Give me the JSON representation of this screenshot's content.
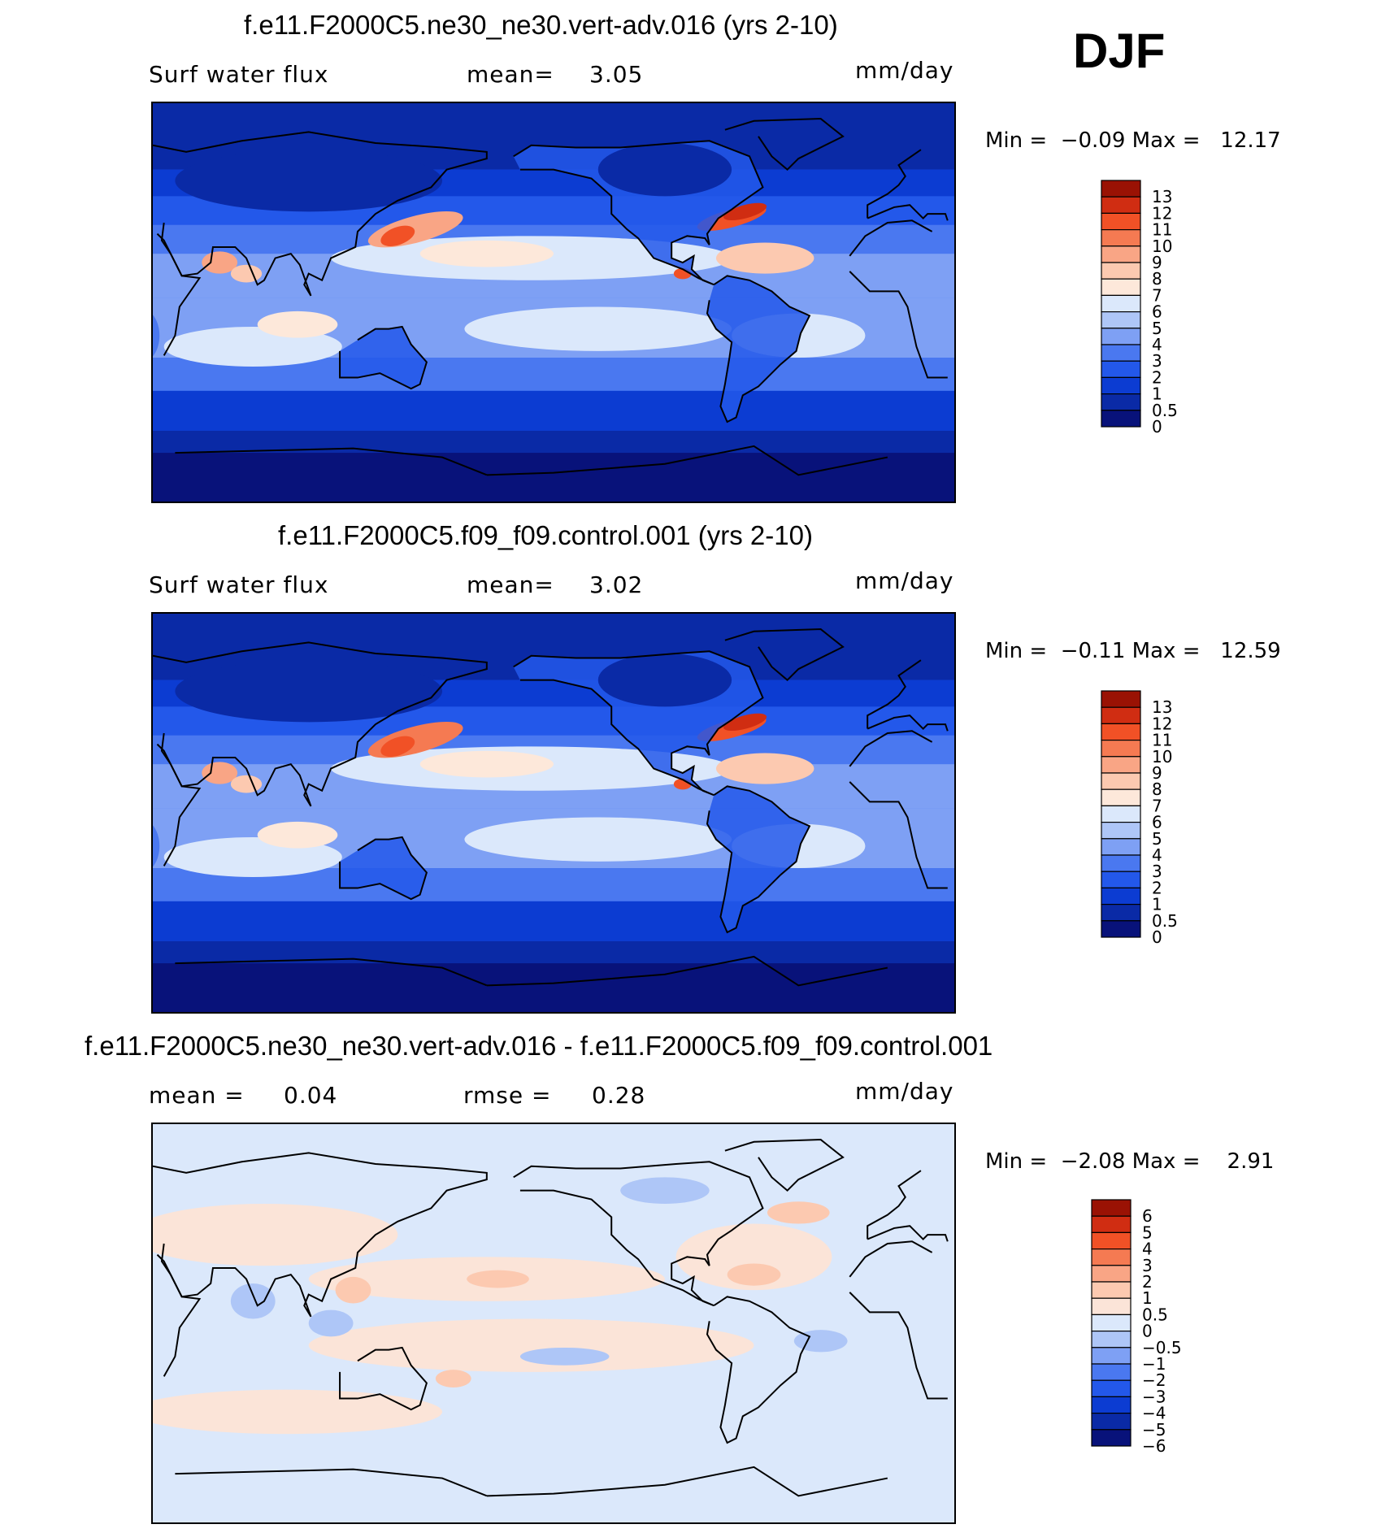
{
  "season": "DJF",
  "colors": {
    "abs_levels": [
      "#08127a",
      "#0a2aa6",
      "#0c3cd2",
      "#2358ea",
      "#4a78f0",
      "#7ea0f4",
      "#aec6f7",
      "#dbe8fb",
      "#fde8da",
      "#fcc9b0",
      "#f9a585",
      "#f57a52",
      "#f15126",
      "#d02d12",
      "#9a1204"
    ],
    "diff_levels": [
      "#08127a",
      "#0a2aa6",
      "#0c3cd2",
      "#2358ea",
      "#4a78f0",
      "#7ea0f4",
      "#aec6f7",
      "#dbe8fb",
      "#fbe4d8",
      "#fcc9b0",
      "#f9a585",
      "#f57a52",
      "#f15126",
      "#d02d12",
      "#9a1204"
    ]
  },
  "panels": [
    {
      "title": "f.e11.F2000C5.ne30_ne30.vert-adv.016 (yrs 2-10)",
      "left_label": "Surf water flux",
      "mid_label": "mean=",
      "mid_value": "3.05",
      "units": "mm/day",
      "min_label": "Min =",
      "min_value": "−0.09",
      "max_label": "Max =",
      "max_value": "12.17"
    },
    {
      "title": "f.e11.F2000C5.f09_f09.control.001 (yrs 2-10)",
      "left_label": "Surf water flux",
      "mid_label": "mean=",
      "mid_value": "3.02",
      "units": "mm/day",
      "min_label": "Min =",
      "min_value": "−0.11",
      "max_label": "Max =",
      "max_value": "12.59"
    },
    {
      "title": "f.e11.F2000C5.ne30_ne30.vert-adv.016 - f.e11.F2000C5.f09_f09.control.001",
      "left_label": "mean =",
      "left_value": "0.04",
      "mid_label": "rmse =",
      "mid_value": "0.28",
      "units": "mm/day",
      "min_label": "Min =",
      "min_value": "−2.08",
      "max_label": "Max =",
      "max_value": "2.91"
    }
  ],
  "chart_data": [
    {
      "type": "heatmap",
      "title": "f.e11.F2000C5.ne30_ne30.vert-adv.016 (yrs 2-10)",
      "variable": "Surf water flux",
      "units": "mm/day",
      "mean": 3.05,
      "min": -0.09,
      "max": 12.17,
      "colorbar_levels": [
        "13",
        "12",
        "11",
        "10",
        "9",
        "8",
        "7",
        "6",
        "5",
        "4",
        "3",
        "2",
        "1",
        "0.5",
        "0"
      ]
    },
    {
      "type": "heatmap",
      "title": "f.e11.F2000C5.f09_f09.control.001 (yrs 2-10)",
      "variable": "Surf water flux",
      "units": "mm/day",
      "mean": 3.02,
      "min": -0.11,
      "max": 12.59,
      "colorbar_levels": [
        "13",
        "12",
        "11",
        "10",
        "9",
        "8",
        "7",
        "6",
        "5",
        "4",
        "3",
        "2",
        "1",
        "0.5",
        "0"
      ]
    },
    {
      "type": "heatmap",
      "title": "f.e11.F2000C5.ne30_ne30.vert-adv.016 - f.e11.F2000C5.f09_f09.control.001",
      "units": "mm/day",
      "mean": 0.04,
      "rmse": 0.28,
      "min": -2.08,
      "max": 2.91,
      "colorbar_levels": [
        "6",
        "5",
        "4",
        "3",
        "2",
        "1",
        "0.5",
        "0",
        "−0.5",
        "−1",
        "−2",
        "−3",
        "−4",
        "−5",
        "−6"
      ]
    }
  ]
}
